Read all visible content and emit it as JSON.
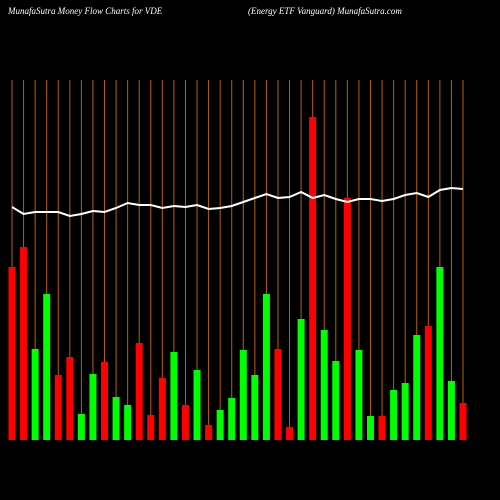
{
  "chart_data": {
    "type": "bar_line",
    "title": "MunafaSutra  Money Flow  Charts for VDE",
    "subtitle": "(Energy ETF Vanguard) MunafaSutra.com",
    "categories": [
      null,
      null,
      null,
      null,
      null,
      null,
      null,
      null,
      null,
      null,
      null,
      null,
      null,
      null,
      null,
      null,
      null,
      null,
      null,
      null,
      null,
      null,
      null,
      null,
      null,
      null,
      null,
      null,
      null,
      null,
      null,
      null,
      null,
      null,
      null,
      null,
      null,
      null,
      null,
      null
    ],
    "ylim": [
      0,
      360
    ],
    "grid_color": "#b8600a",
    "bars": {
      "values": [
        173,
        193,
        91,
        146,
        65,
        83,
        26,
        66,
        78,
        43,
        35,
        97,
        25,
        62,
        88,
        35,
        70,
        15,
        30,
        42,
        90,
        65,
        146,
        91,
        13,
        121,
        323,
        110,
        79,
        242,
        90,
        24,
        24,
        50,
        57,
        105,
        114,
        173,
        59,
        37
      ],
      "colors": [
        "#ff0000",
        "#ff0000",
        "#00ff00",
        "#00ff00",
        "#ff0000",
        "#ff0000",
        "#00ff00",
        "#00ff00",
        "#ff0000",
        "#00ff00",
        "#00ff00",
        "#ff0000",
        "#ff0000",
        "#ff0000",
        "#00ff00",
        "#ff0000",
        "#00ff00",
        "#ff0000",
        "#00ff00",
        "#00ff00",
        "#00ff00",
        "#00ff00",
        "#00ff00",
        "#ff0000",
        "#ff0000",
        "#00ff00",
        "#ff0000",
        "#00ff00",
        "#00ff00",
        "#ff0000",
        "#00ff00",
        "#00ff00",
        "#ff0000",
        "#00ff00",
        "#00ff00",
        "#00ff00",
        "#ff0000",
        "#00ff00",
        "#00ff00",
        "#ff0000"
      ]
    },
    "line": {
      "color": "#ffffff",
      "values": [
        233,
        226,
        228,
        228,
        228,
        224,
        226,
        229,
        228,
        232,
        237,
        235,
        235,
        232,
        234,
        233,
        235,
        231,
        232,
        234,
        238,
        242,
        246,
        242,
        243,
        248,
        242,
        245,
        241,
        238,
        241,
        241,
        239,
        241,
        245,
        247,
        243,
        250,
        252,
        251
      ]
    }
  }
}
